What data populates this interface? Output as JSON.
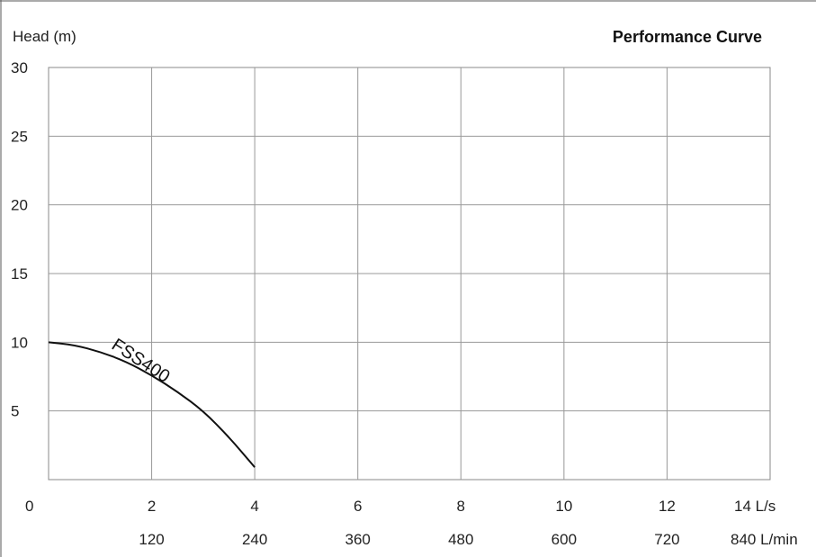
{
  "chart_data": {
    "type": "line",
    "title": "Performance  Curve",
    "ylabel": "Head (m)",
    "ylim": [
      0,
      30
    ],
    "y_ticks": [
      "30",
      "25",
      "20",
      "15",
      "10",
      "5",
      "0"
    ],
    "xlim": [
      0,
      14
    ],
    "x_ticks_primary": [
      "2",
      "4",
      "6",
      "8",
      "10",
      "12",
      "14 L/s"
    ],
    "x_ticks_secondary": [
      "120",
      "240",
      "360",
      "480",
      "600",
      "720",
      "840 L/min"
    ],
    "grid": true,
    "series": [
      {
        "name": "FSS400",
        "x": [
          0,
          0.5,
          1,
          1.5,
          2,
          2.5,
          3,
          3.5,
          4
        ],
        "y": [
          10,
          9.8,
          9.3,
          8.6,
          7.6,
          6.4,
          5.0,
          3.1,
          0.9
        ]
      }
    ]
  }
}
